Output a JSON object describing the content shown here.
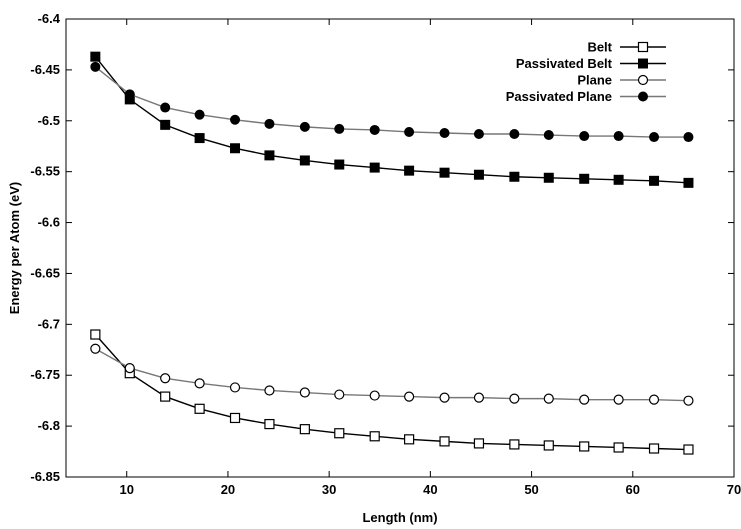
{
  "chart_data": {
    "type": "line",
    "title": "",
    "xlabel": "Length (nm)",
    "ylabel": "Energy per Atom (eV)",
    "xlim": [
      4,
      70
    ],
    "ylim": [
      -6.85,
      -6.4
    ],
    "xticks": [
      10,
      20,
      30,
      40,
      50,
      60,
      70
    ],
    "yticks": [
      -6.4,
      -6.45,
      -6.5,
      -6.55,
      -6.6,
      -6.65,
      -6.7,
      -6.75,
      -6.8,
      -6.85
    ],
    "grid": false,
    "legend_position": "top-right",
    "x": [
      6.9,
      10.3,
      13.8,
      17.2,
      20.7,
      24.1,
      27.6,
      31.0,
      34.5,
      37.9,
      41.4,
      44.8,
      48.3,
      51.7,
      55.2,
      58.6,
      62.1,
      65.5
    ],
    "series": [
      {
        "name": "Belt",
        "marker": "open-square",
        "line_color": "#000000",
        "values": [
          -6.71,
          -6.748,
          -6.771,
          -6.783,
          -6.792,
          -6.798,
          -6.803,
          -6.807,
          -6.81,
          -6.813,
          -6.815,
          -6.817,
          -6.818,
          -6.819,
          -6.82,
          -6.821,
          -6.822,
          -6.823
        ]
      },
      {
        "name": "Passivated Belt",
        "marker": "filled-square",
        "line_color": "#000000",
        "values": [
          -6.437,
          -6.479,
          -6.504,
          -6.517,
          -6.527,
          -6.534,
          -6.539,
          -6.543,
          -6.546,
          -6.549,
          -6.551,
          -6.553,
          -6.555,
          -6.556,
          -6.557,
          -6.558,
          -6.559,
          -6.561
        ]
      },
      {
        "name": "Plane",
        "marker": "open-circle",
        "line_color": "#777777",
        "values": [
          -6.724,
          -6.743,
          -6.753,
          -6.758,
          -6.762,
          -6.765,
          -6.767,
          -6.769,
          -6.77,
          -6.771,
          -6.772,
          -6.772,
          -6.773,
          -6.773,
          -6.774,
          -6.774,
          -6.774,
          -6.775
        ]
      },
      {
        "name": "Passivated Plane",
        "marker": "filled-circle",
        "line_color": "#777777",
        "values": [
          -6.447,
          -6.474,
          -6.487,
          -6.494,
          -6.499,
          -6.503,
          -6.506,
          -6.508,
          -6.509,
          -6.511,
          -6.512,
          -6.513,
          -6.513,
          -6.514,
          -6.515,
          -6.515,
          -6.516,
          -6.516
        ]
      }
    ]
  }
}
